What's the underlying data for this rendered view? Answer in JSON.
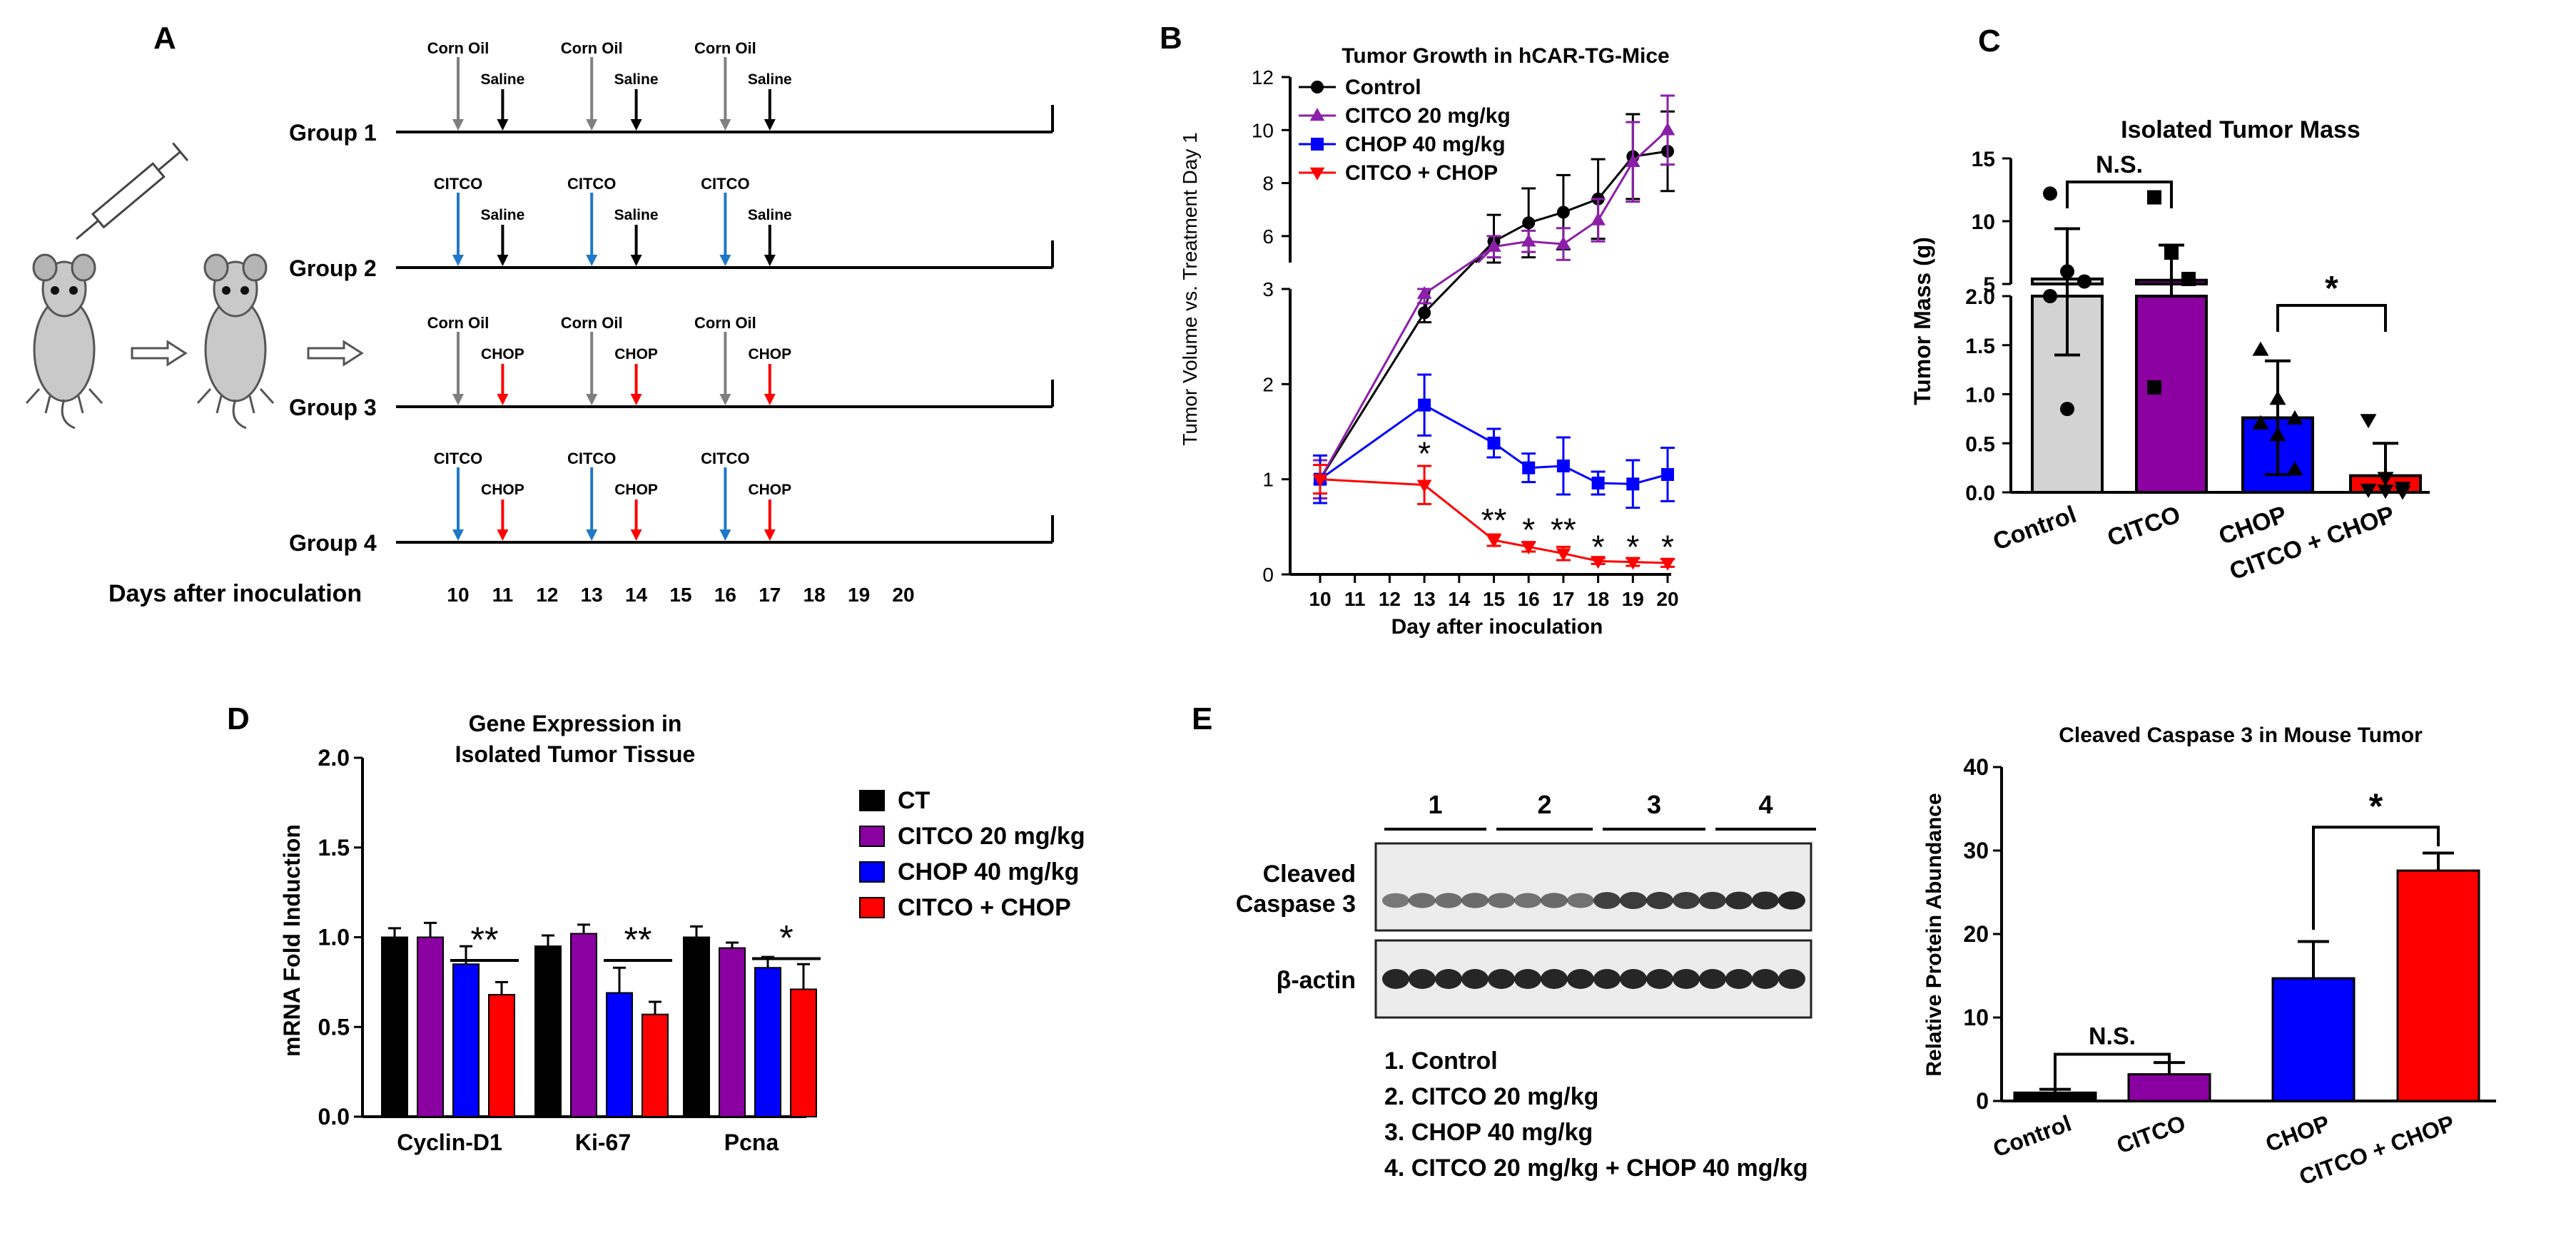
{
  "panel_letters": {
    "a": "A",
    "b": "B",
    "c": "C",
    "d": "D",
    "e": "E"
  },
  "colors": {
    "grey": "#7f7f7f",
    "black": "#000000",
    "blue": "#1f78c8",
    "red": "#ff0000",
    "purple": "#8b1fa9",
    "chop_blue": "#0000ff",
    "mouse": "#c9c9c9"
  },
  "panel_a": {
    "x_axis_label": "Days after inoculation",
    "ticks": [
      "10",
      "11",
      "12",
      "13",
      "14",
      "15",
      "16",
      "17",
      "18",
      "19",
      "20"
    ],
    "groups": [
      {
        "label": "Group 1",
        "injections": [
          {
            "day": 10,
            "text": "Corn Oil",
            "color": "grey"
          },
          {
            "day": 11,
            "text": "Saline",
            "color": "black"
          },
          {
            "day": 13,
            "text": "Corn Oil",
            "color": "grey"
          },
          {
            "day": 14,
            "text": "Saline",
            "color": "black"
          },
          {
            "day": 16,
            "text": "Corn Oil",
            "color": "grey"
          },
          {
            "day": 17,
            "text": "Saline",
            "color": "black"
          }
        ]
      },
      {
        "label": "Group 2",
        "injections": [
          {
            "day": 10,
            "text": "CITCO",
            "color": "blue"
          },
          {
            "day": 11,
            "text": "Saline",
            "color": "black"
          },
          {
            "day": 13,
            "text": "CITCO",
            "color": "blue"
          },
          {
            "day": 14,
            "text": "Saline",
            "color": "black"
          },
          {
            "day": 16,
            "text": "CITCO",
            "color": "blue"
          },
          {
            "day": 17,
            "text": "Saline",
            "color": "black"
          }
        ]
      },
      {
        "label": "Group 3",
        "injections": [
          {
            "day": 10,
            "text": "Corn Oil",
            "color": "grey"
          },
          {
            "day": 11,
            "text": "CHOP",
            "color": "red"
          },
          {
            "day": 13,
            "text": "Corn Oil",
            "color": "grey"
          },
          {
            "day": 14,
            "text": "CHOP",
            "color": "red"
          },
          {
            "day": 16,
            "text": "Corn Oil",
            "color": "grey"
          },
          {
            "day": 17,
            "text": "CHOP",
            "color": "red"
          }
        ]
      },
      {
        "label": "Group 4",
        "injections": [
          {
            "day": 10,
            "text": "CITCO",
            "color": "blue"
          },
          {
            "day": 11,
            "text": "CHOP",
            "color": "red"
          },
          {
            "day": 13,
            "text": "CITCO",
            "color": "blue"
          },
          {
            "day": 14,
            "text": "CHOP",
            "color": "red"
          },
          {
            "day": 16,
            "text": "CITCO",
            "color": "blue"
          },
          {
            "day": 17,
            "text": "CHOP",
            "color": "red"
          }
        ]
      }
    ]
  },
  "chart_data": [
    {
      "id": "B",
      "type": "line",
      "title": "Tumor Growth in hCAR-TG-Mice",
      "xlabel": "Day after inoculation",
      "ylabel": "Tumor Volume vs. Treatment  Day 1",
      "x_ticks": [
        10,
        11,
        12,
        13,
        14,
        15,
        16,
        17,
        18,
        19,
        20
      ],
      "lower_ylim": [
        0,
        3
      ],
      "lower_ticks": [
        0,
        1,
        2,
        3
      ],
      "upper_ylim": [
        5,
        12
      ],
      "upper_ticks": [
        6,
        8,
        10,
        12
      ],
      "series": [
        {
          "name": "Control",
          "color": "black",
          "marker": "circle",
          "x": [
            10,
            13,
            15,
            16,
            17,
            18,
            19,
            20
          ],
          "y": [
            1.0,
            2.75,
            5.8,
            6.5,
            6.9,
            7.4,
            9.0,
            9.2
          ],
          "err": [
            0.2,
            0.1,
            1.0,
            1.3,
            1.4,
            1.5,
            1.6,
            1.5
          ]
        },
        {
          "name": "CITCO 20 mg/kg",
          "color": "purple",
          "marker": "triangle",
          "x": [
            10,
            13,
            15,
            16,
            17,
            18,
            19,
            20
          ],
          "y": [
            1.0,
            2.95,
            5.6,
            5.8,
            5.7,
            6.6,
            8.8,
            10.0
          ],
          "err": [
            0.2,
            0.1,
            0.4,
            0.4,
            0.6,
            0.8,
            1.5,
            1.3
          ]
        },
        {
          "name": "CHOP 40 mg/kg",
          "color": "chop_blue",
          "marker": "square",
          "x": [
            10,
            13,
            15,
            16,
            17,
            18,
            19,
            20
          ],
          "y": [
            1.0,
            1.78,
            1.38,
            1.12,
            1.14,
            0.96,
            0.95,
            1.05
          ],
          "err": [
            0.25,
            0.32,
            0.15,
            0.15,
            0.3,
            0.12,
            0.25,
            0.28
          ]
        },
        {
          "name": "CITCO + CHOP",
          "color": "red",
          "marker": "triangle-down",
          "x": [
            10,
            13,
            15,
            16,
            17,
            18,
            19,
            20
          ],
          "y": [
            1.0,
            0.94,
            0.36,
            0.29,
            0.22,
            0.14,
            0.13,
            0.12
          ],
          "err": [
            0.15,
            0.2,
            0.06,
            0.05,
            0.07,
            0.03,
            0.04,
            0.04
          ]
        }
      ],
      "annotations": [
        {
          "x": 13,
          "y": 1.3,
          "text": "*"
        },
        {
          "x": 15,
          "y": 0.6,
          "text": "**"
        },
        {
          "x": 16,
          "y": 0.5,
          "text": "*"
        },
        {
          "x": 17,
          "y": 0.5,
          "text": "**"
        },
        {
          "x": 18,
          "y": 0.32,
          "text": "*"
        },
        {
          "x": 19,
          "y": 0.32,
          "text": "*"
        },
        {
          "x": 20,
          "y": 0.32,
          "text": "*"
        }
      ]
    },
    {
      "id": "C",
      "type": "bar",
      "title": "Isolated Tumor Mass",
      "ylabel": "Tumor Mass (g)",
      "categories": [
        "Control",
        "CITCO",
        "CHOP",
        "CITCO + CHOP"
      ],
      "values": [
        5.4,
        5.3,
        0.76,
        0.17
      ],
      "err": [
        4.0,
        2.8,
        0.58,
        0.33
      ],
      "colors": [
        "#d3d3d3",
        "#8b00a0",
        "#0000ff",
        "#ff0000"
      ],
      "lower_ylim": [
        0,
        2.0
      ],
      "lower_ticks": [
        0.0,
        0.5,
        1.0,
        1.5,
        2.0
      ],
      "upper_ylim": [
        5,
        15
      ],
      "upper_ticks": [
        5,
        10,
        15
      ],
      "points": [
        [
          12.2,
          6.0,
          5.2,
          4.6,
          0.85
        ],
        [
          11.9,
          7.5,
          5.4,
          1.07
        ],
        [
          1.45,
          0.95,
          0.75,
          0.7,
          0.58,
          0.23
        ],
        [
          0.74,
          0.15,
          0.05,
          0.03,
          0.02,
          0.01
        ]
      ],
      "point_markers": [
        "circle",
        "square",
        "triangle",
        "triangle-down"
      ],
      "annotations": [
        {
          "between": [
            0,
            1
          ],
          "text": "N.S."
        },
        {
          "between": [
            2,
            3
          ],
          "text": "*"
        }
      ]
    },
    {
      "id": "D",
      "type": "bar",
      "title": [
        "Gene Expression in",
        "Isolated Tumor  Tissue"
      ],
      "ylabel": "mRNA Fold Induction",
      "ylim": [
        0,
        2.0
      ],
      "y_ticks": [
        "0.0",
        "0.5",
        "1.0",
        "1.5",
        "2.0"
      ],
      "categories": [
        "Cyclin-D1",
        "Ki-67",
        "Pcna"
      ],
      "series": [
        {
          "name": "CT",
          "color": "#000000",
          "values": [
            1.0,
            0.95,
            1.0
          ],
          "err": [
            0.05,
            0.06,
            0.06
          ]
        },
        {
          "name": "CITCO 20 mg/kg",
          "color": "#8b00a0",
          "values": [
            1.0,
            1.02,
            0.94
          ],
          "err": [
            0.08,
            0.05,
            0.03
          ]
        },
        {
          "name": "CHOP 40 mg/kg",
          "color": "#0000ff",
          "values": [
            0.85,
            0.69,
            0.83
          ],
          "err": [
            0.1,
            0.14,
            0.06
          ]
        },
        {
          "name": "CITCO + CHOP",
          "color": "#ff0000",
          "values": [
            0.68,
            0.57,
            0.71
          ],
          "err": [
            0.07,
            0.07,
            0.14
          ]
        }
      ],
      "annotations": [
        {
          "category": 0,
          "text": "**"
        },
        {
          "category": 1,
          "text": "**"
        },
        {
          "category": 2,
          "text": "*"
        }
      ]
    },
    {
      "id": "E",
      "type": "bar",
      "title": "Cleaved Caspase 3 in Mouse Tumor",
      "ylabel": "Relative Protein Abundance",
      "ylim": [
        0,
        40
      ],
      "y_ticks": [
        "0",
        "10",
        "20",
        "30",
        "40"
      ],
      "categories": [
        "Control",
        "CITCO",
        "CHOP",
        "CITCO + CHOP"
      ],
      "values": [
        1.0,
        3.2,
        14.7,
        27.6
      ],
      "err": [
        0.4,
        1.4,
        4.4,
        2.1
      ],
      "colors": [
        "#000000",
        "#8b00a0",
        "#0000ff",
        "#ff0000"
      ],
      "annotations": [
        {
          "between": [
            0,
            1
          ],
          "text": "N.S."
        },
        {
          "between": [
            2,
            3
          ],
          "text": "*"
        }
      ]
    }
  ],
  "blot": {
    "lanes": [
      "1",
      "2",
      "3",
      "4"
    ],
    "rows": [
      {
        "label_lines": [
          "Cleaved",
          "Caspase 3"
        ]
      },
      {
        "label_lines": [
          "β-actin"
        ]
      }
    ],
    "legend": [
      "1. Control",
      "2. CITCO 20 mg/kg",
      "3. CHOP 40 mg/kg",
      "4. CITCO 20 mg/kg + CHOP 40 mg/kg"
    ]
  }
}
